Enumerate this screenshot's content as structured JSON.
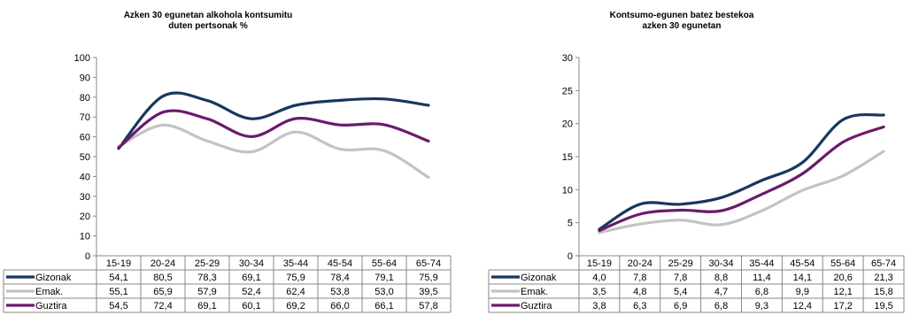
{
  "chart_data": [
    {
      "type": "line",
      "title": "Azken 30 egunetan alkohola kontsumitu\nduten pertsonak %",
      "categories": [
        "15-19",
        "20-24",
        "25-29",
        "30-34",
        "35-44",
        "45-54",
        "55-64",
        "65-74"
      ],
      "ylim": [
        0,
        100
      ],
      "yticks": [
        0,
        10,
        20,
        30,
        40,
        50,
        60,
        70,
        80,
        90,
        100
      ],
      "grid": false,
      "legend": "data-table",
      "series": [
        {
          "name": "Gizonak",
          "color": "#17375e",
          "values": [
            54.1,
            80.5,
            78.3,
            69.1,
            75.9,
            78.4,
            79.1,
            75.9
          ],
          "labels": [
            "54,1",
            "80,5",
            "78,3",
            "69,1",
            "75,9",
            "78,4",
            "79,1",
            "75,9"
          ]
        },
        {
          "name": "Emak.",
          "color": "#c3c3c3",
          "values": [
            55.1,
            65.9,
            57.9,
            52.4,
            62.4,
            53.8,
            53.0,
            39.5
          ],
          "labels": [
            "55,1",
            "65,9",
            "57,9",
            "52,4",
            "62,4",
            "53,8",
            "53,0",
            "39,5"
          ]
        },
        {
          "name": "Guztira",
          "color": "#6a1a6e",
          "values": [
            54.5,
            72.4,
            69.1,
            60.1,
            69.2,
            66.0,
            66.1,
            57.8
          ],
          "labels": [
            "54,5",
            "72,4",
            "69,1",
            "60,1",
            "69,2",
            "66,0",
            "66,1",
            "57,8"
          ]
        }
      ]
    },
    {
      "type": "line",
      "title": "Kontsumo-egunen batez bestekoa\nazken 30 egunetan",
      "categories": [
        "15-19",
        "20-24",
        "25-29",
        "30-34",
        "35-44",
        "45-54",
        "55-64",
        "65-74"
      ],
      "ylim": [
        0,
        30
      ],
      "yticks": [
        0,
        5,
        10,
        15,
        20,
        25,
        30
      ],
      "grid": false,
      "legend": "data-table",
      "series": [
        {
          "name": "Gizonak",
          "color": "#17375e",
          "values": [
            4.0,
            7.8,
            7.8,
            8.8,
            11.4,
            14.1,
            20.6,
            21.3
          ],
          "labels": [
            "4,0",
            "7,8",
            "7,8",
            "8,8",
            "11,4",
            "14,1",
            "20,6",
            "21,3"
          ]
        },
        {
          "name": "Emak.",
          "color": "#c3c3c3",
          "values": [
            3.5,
            4.8,
            5.4,
            4.7,
            6.8,
            9.9,
            12.1,
            15.8
          ],
          "labels": [
            "3,5",
            "4,8",
            "5,4",
            "4,7",
            "6,8",
            "9,9",
            "12,1",
            "15,8"
          ]
        },
        {
          "name": "Guztira",
          "color": "#6a1a6e",
          "values": [
            3.8,
            6.3,
            6.9,
            6.8,
            9.3,
            12.4,
            17.2,
            19.5
          ],
          "labels": [
            "3,8",
            "6,3",
            "6,9",
            "6,8",
            "9,3",
            "12,4",
            "17,2",
            "19,5"
          ]
        }
      ]
    }
  ]
}
